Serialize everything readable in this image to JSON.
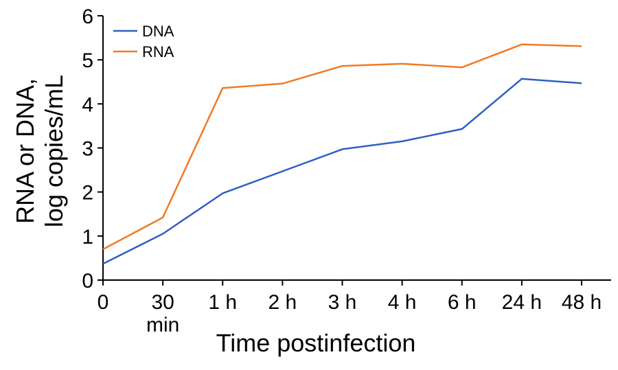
{
  "chart_data": {
    "type": "line",
    "title": "",
    "xlabel": "Time postinfection",
    "ylabel_line1": "RNA or DNA,",
    "ylabel_line2": "log copies/mL",
    "categories": [
      "0",
      "30 min",
      "1 h",
      "2 h",
      "3 h",
      "4 h",
      "6 h",
      "24 h",
      "48 h"
    ],
    "category_labels": [
      [
        "0"
      ],
      [
        "30",
        "min"
      ],
      [
        "1 h"
      ],
      [
        "2 h"
      ],
      [
        "3 h"
      ],
      [
        "4 h"
      ],
      [
        "6 h"
      ],
      [
        "24 h"
      ],
      [
        "48 h"
      ]
    ],
    "ylim": [
      0,
      6
    ],
    "yticks": [
      0,
      1,
      2,
      3,
      4,
      5,
      6
    ],
    "grid": false,
    "legend_position": "top-left",
    "series": [
      {
        "name": "DNA",
        "color": "#2f5ec4",
        "values": [
          0.37,
          1.05,
          1.97,
          2.47,
          2.97,
          3.15,
          3.43,
          4.57,
          4.47
        ]
      },
      {
        "name": "RNA",
        "color": "#f07a23",
        "values": [
          0.7,
          1.42,
          4.36,
          4.46,
          4.86,
          4.91,
          4.83,
          5.35,
          5.31
        ]
      }
    ]
  }
}
